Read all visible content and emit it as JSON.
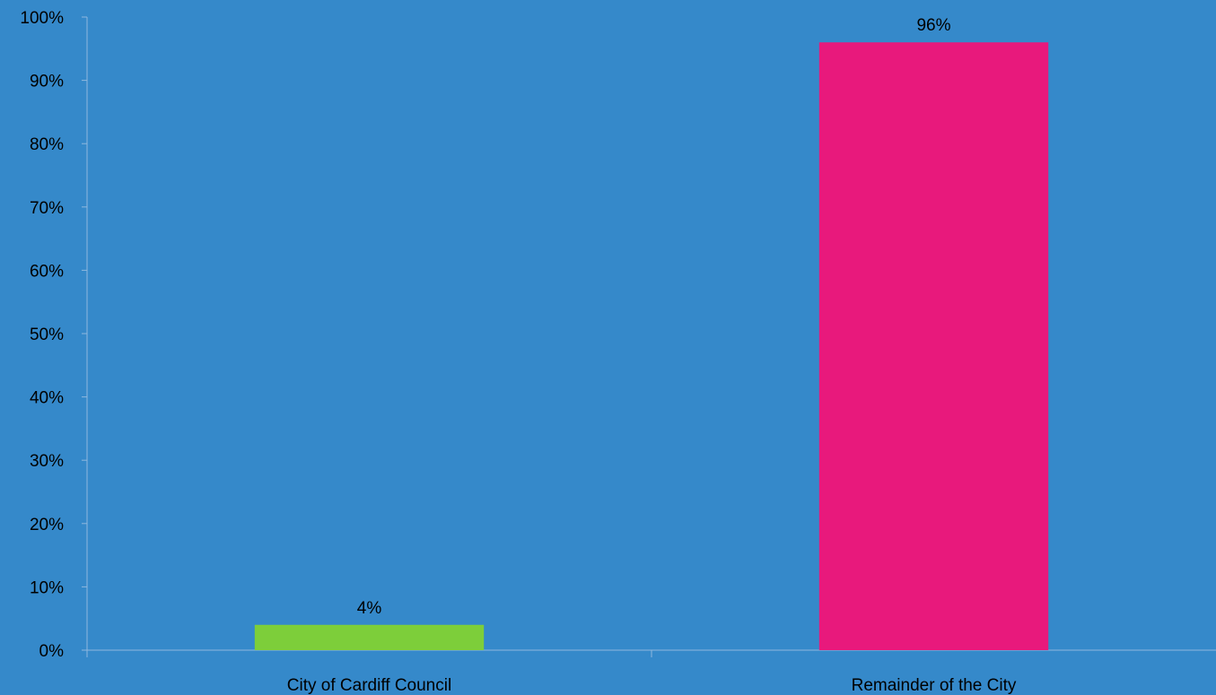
{
  "chart_data": {
    "type": "bar",
    "title": "",
    "xlabel": "",
    "ylabel": "",
    "categories": [
      "City of Cardiff Council",
      "Remainder of the City"
    ],
    "values": [
      4,
      96
    ],
    "value_labels": [
      "4%",
      "96%"
    ],
    "bar_colors": [
      "#7DCE3A",
      "#E8197C"
    ],
    "ylim": [
      0,
      100
    ],
    "y_ticks": [
      0,
      10,
      20,
      30,
      40,
      50,
      60,
      70,
      80,
      90,
      100
    ],
    "y_tick_labels": [
      "0%",
      "10%",
      "20%",
      "30%",
      "40%",
      "50%",
      "60%",
      "70%",
      "80%",
      "90%",
      "100%"
    ],
    "grid": false,
    "legend": "none"
  },
  "colors": {
    "background": "#3589CA",
    "axis": "#8FB8DE",
    "text": "#000000"
  }
}
